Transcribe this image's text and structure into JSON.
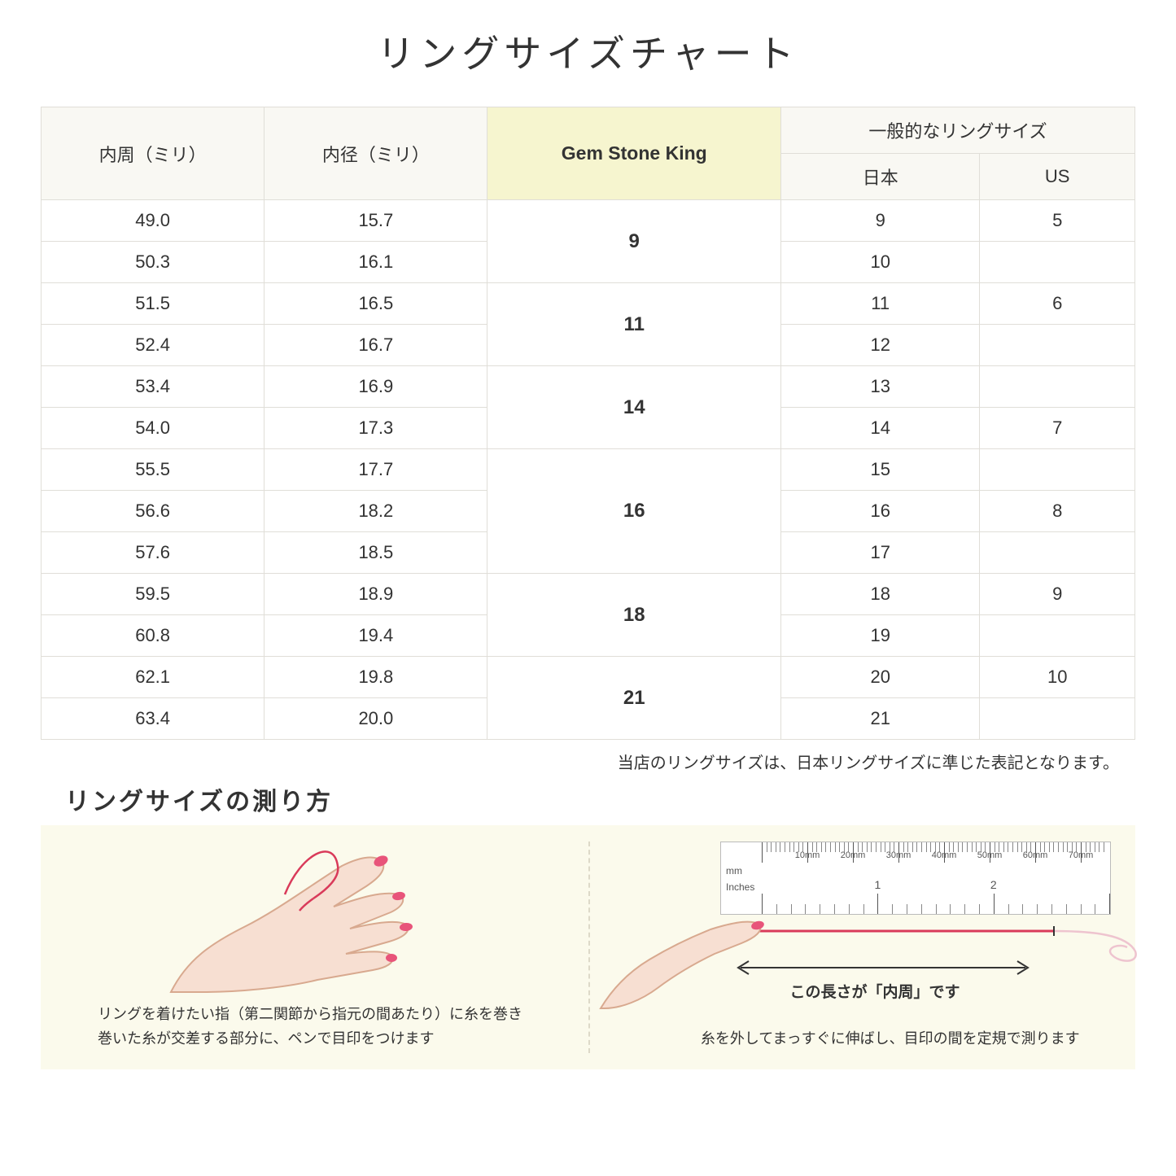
{
  "title": "リングサイズチャート",
  "table": {
    "headers": {
      "circumference": "内周（ミリ）",
      "diameter": "内径（ミリ）",
      "gsk": "Gem Stone King",
      "general": "一般的なリングサイズ",
      "japan": "日本",
      "us": "US"
    },
    "groups": [
      {
        "gsk": "9",
        "rows": [
          {
            "c": "49.0",
            "d": "15.7",
            "jp": "9",
            "us": "5"
          },
          {
            "c": "50.3",
            "d": "16.1",
            "jp": "10",
            "us": ""
          }
        ]
      },
      {
        "gsk": "11",
        "rows": [
          {
            "c": "51.5",
            "d": "16.5",
            "jp": "11",
            "us": "6"
          },
          {
            "c": "52.4",
            "d": "16.7",
            "jp": "12",
            "us": ""
          }
        ]
      },
      {
        "gsk": "14",
        "rows": [
          {
            "c": "53.4",
            "d": "16.9",
            "jp": "13",
            "us": ""
          },
          {
            "c": "54.0",
            "d": "17.3",
            "jp": "14",
            "us": "7"
          }
        ]
      },
      {
        "gsk": "16",
        "rows": [
          {
            "c": "55.5",
            "d": "17.7",
            "jp": "15",
            "us": ""
          },
          {
            "c": "56.6",
            "d": "18.2",
            "jp": "16",
            "us": "8"
          },
          {
            "c": "57.6",
            "d": "18.5",
            "jp": "17",
            "us": ""
          }
        ]
      },
      {
        "gsk": "18",
        "rows": [
          {
            "c": "59.5",
            "d": "18.9",
            "jp": "18",
            "us": "9"
          },
          {
            "c": "60.8",
            "d": "19.4",
            "jp": "19",
            "us": ""
          }
        ]
      },
      {
        "gsk": "21",
        "rows": [
          {
            "c": "62.1",
            "d": "19.8",
            "jp": "20",
            "us": "10"
          },
          {
            "c": "63.4",
            "d": "20.0",
            "jp": "21",
            "us": ""
          }
        ]
      }
    ],
    "header_bg": "#f9f8f3",
    "gsk_header_bg": "#f6f5cf",
    "border_color": "#e0ded8"
  },
  "note": "当店のリングサイズは、日本リングサイズに準じた表記となります。",
  "howto": {
    "title": "リングサイズの測り方",
    "panel_bg": "#fbfaec",
    "left_caption": "リングを着けたい指（第二関節から指元の間あたり）に糸を巻き\n巻いた糸が交差する部分に、ペンで目印をつけます",
    "right_caption": "糸を外してまっすぐに伸ばし、目印の間を定規で測ります",
    "arrow_label": "この長さが「内周」です",
    "ruler": {
      "mm_unit": "mm",
      "in_unit": "Inches",
      "mm_labels": [
        "10mm",
        "20mm",
        "30mm",
        "40mm",
        "50mm",
        "60mm",
        "70mm"
      ],
      "in_labels": [
        "1",
        "2"
      ]
    },
    "hand_skin_color": "#f7dfd2",
    "hand_outline_color": "#d8a98f",
    "nail_color": "#e8547a",
    "thread_color": "#d93a5a"
  }
}
